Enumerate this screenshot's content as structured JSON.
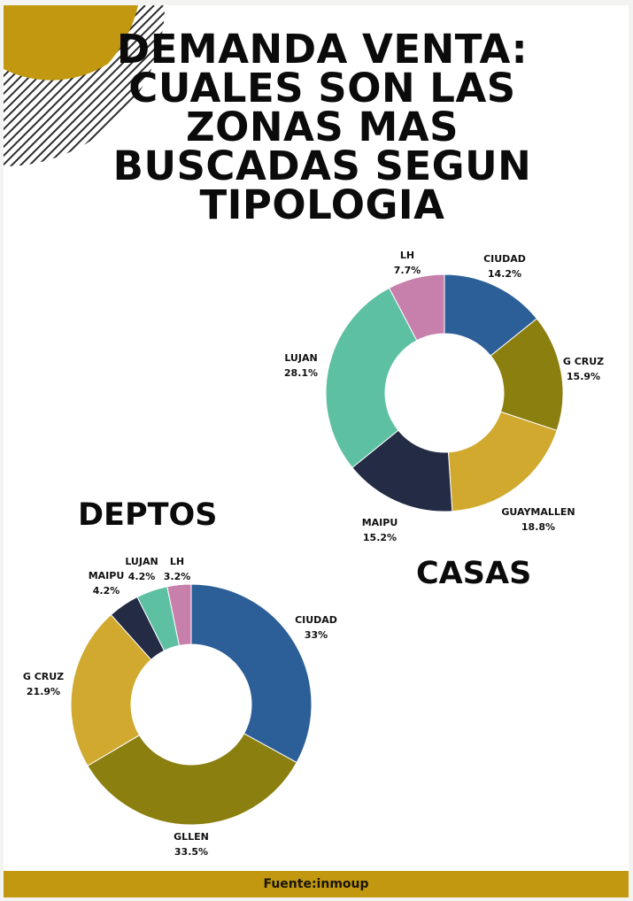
{
  "title": "DEMANDA VENTA: CUALES SON LAS ZONAS MAS BUSCADAS SEGUN TIPOLOGIA",
  "footer": "Fuente:inmoup",
  "colors": {
    "background": "#ffffff",
    "accent_gold": "#c1980f",
    "title_text": "#0b0b0b"
  },
  "chart_data": [
    {
      "type": "pie",
      "variant": "donut",
      "title": "CASAS",
      "categories": [
        "CIUDAD",
        "G CRUZ",
        "GUAYMALLEN",
        "MAIPU",
        "LUJAN",
        "LH"
      ],
      "values": [
        14.2,
        15.9,
        18.8,
        15.2,
        28.1,
        7.7
      ],
      "value_labels": [
        "14.2%",
        "15.9%",
        "18.8%",
        "15.2%",
        "28.1%",
        "7.7%"
      ],
      "colors": [
        "#2c5f97",
        "#8b7f0f",
        "#d1a92f",
        "#232b45",
        "#5ec0a2",
        "#c77fab"
      ],
      "start_angle_deg": 0,
      "direction": "clockwise"
    },
    {
      "type": "pie",
      "variant": "donut",
      "title": "DEPTOS",
      "categories": [
        "CIUDAD",
        "GLLEN",
        "G CRUZ",
        "MAIPU",
        "LUJAN",
        "LH"
      ],
      "values": [
        33,
        33.5,
        21.9,
        4.2,
        4.2,
        3.2
      ],
      "value_labels": [
        "33%",
        "33.5%",
        "21.9%",
        "4.2%",
        "4.2%",
        "3.2%"
      ],
      "colors": [
        "#2c5f97",
        "#8b7f0f",
        "#d1a92f",
        "#232b45",
        "#5ec0a2",
        "#c77fab"
      ],
      "start_angle_deg": 0,
      "direction": "clockwise"
    }
  ]
}
